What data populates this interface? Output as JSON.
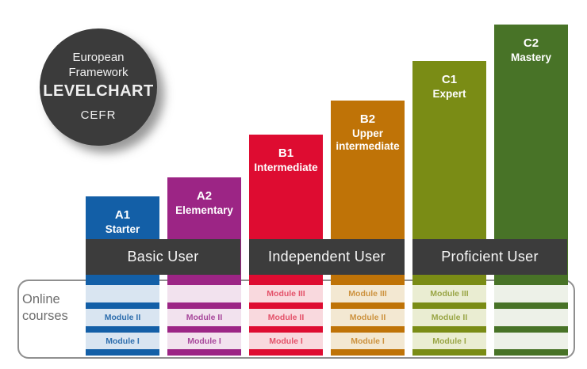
{
  "badge": {
    "line1": "European",
    "line2": "Framework",
    "line3": "LEVELCHART",
    "line4": "CEFR"
  },
  "online_courses_label": "Online\ncourses",
  "groups": [
    {
      "label": "Basic User"
    },
    {
      "label": "Independent User"
    },
    {
      "label": "Proficient User"
    }
  ],
  "levels": [
    {
      "code": "A1",
      "name_lines": [
        "Starter"
      ],
      "color": "#135fa7",
      "light": "#d9e5f1",
      "module_text_color": "#2f6fae",
      "modules": [
        "",
        "Module II",
        "Module I"
      ]
    },
    {
      "code": "A2",
      "name_lines": [
        "Elementary"
      ],
      "color": "#9c2585",
      "light": "#f2e2ee",
      "module_text_color": "#a8499c",
      "modules": [
        "",
        "Module II",
        "Module I"
      ]
    },
    {
      "code": "B1",
      "name_lines": [
        "Intermediate"
      ],
      "color": "#de0c31",
      "light": "#f9d9de",
      "module_text_color": "#e4536b",
      "modules": [
        "Module III",
        "Module II",
        "Module I"
      ]
    },
    {
      "code": "B2",
      "name_lines": [
        "Upper",
        "intermediate"
      ],
      "color": "#bf7307",
      "light": "#f3e8d2",
      "module_text_color": "#cd9340",
      "modules": [
        "Module III",
        "Module II",
        "Module I"
      ]
    },
    {
      "code": "C1",
      "name_lines": [
        "Expert"
      ],
      "color": "#7a8c15",
      "light": "#eaedd2",
      "module_text_color": "#9aa647",
      "modules": [
        "Module III",
        "Module II",
        "Module I"
      ]
    },
    {
      "code": "C2",
      "name_lines": [
        "Mastery"
      ],
      "color": "#487327",
      "light": "#edf1e8",
      "module_text_color": "#487327",
      "modules": [
        "",
        "",
        ""
      ]
    }
  ],
  "colors": {
    "dark": "#3c3c3c",
    "panel_border": "#8f8f8f",
    "online_text": "#6f6f6f"
  }
}
